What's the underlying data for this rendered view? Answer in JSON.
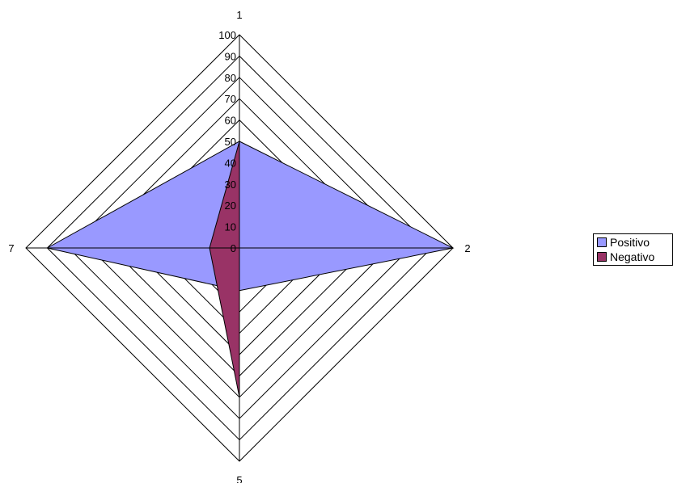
{
  "chart_data": {
    "type": "radar",
    "axes": [
      "1",
      "2",
      "5",
      "7"
    ],
    "ticks": [
      "0",
      "10",
      "20",
      "30",
      "40",
      "50",
      "60",
      "70",
      "80",
      "90",
      "100"
    ],
    "rlim": [
      0,
      100
    ],
    "grid": true,
    "legend_position": "right",
    "series": [
      {
        "name": "Positivo",
        "values": [
          50,
          100,
          20,
          90
        ],
        "color": "#9999ff"
      },
      {
        "name": "Negativo",
        "values": [
          50,
          0,
          70,
          14
        ],
        "color": "#993366"
      }
    ]
  }
}
